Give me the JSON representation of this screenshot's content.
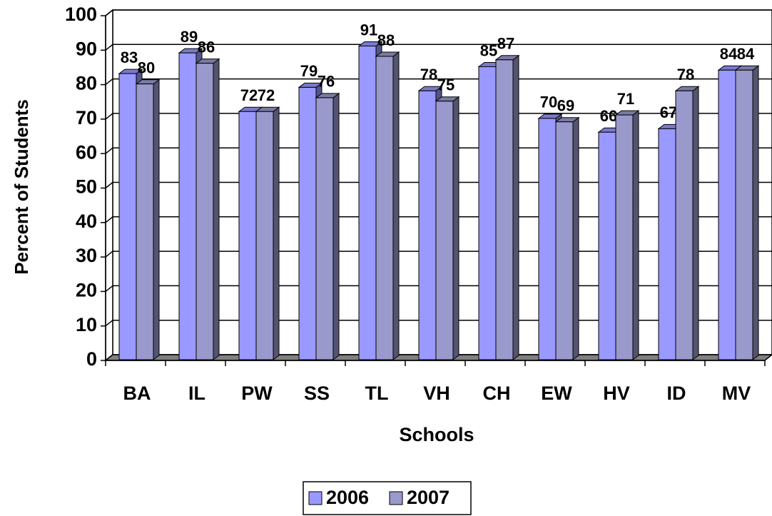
{
  "chart_data": {
    "type": "bar3d",
    "x_label": "Schools",
    "y_label": "Percent of Students",
    "categories": [
      "BA",
      "IL",
      "PW",
      "SS",
      "TL",
      "VH",
      "CH",
      "EW",
      "HV",
      "ID",
      "MV"
    ],
    "series": [
      {
        "name": "2006",
        "color": "#9999ff",
        "values": [
          83,
          89,
          72,
          79,
          91,
          78,
          85,
          70,
          66,
          67,
          84
        ]
      },
      {
        "name": "2007",
        "color": "#9999cc",
        "values": [
          80,
          86,
          72,
          76,
          88,
          75,
          87,
          69,
          71,
          78,
          84
        ]
      }
    ],
    "ylim": [
      0,
      100
    ],
    "yticks": [
      0,
      10,
      20,
      30,
      40,
      50,
      60,
      70,
      80,
      90,
      100
    ],
    "grid": true,
    "legend": "bottom"
  }
}
